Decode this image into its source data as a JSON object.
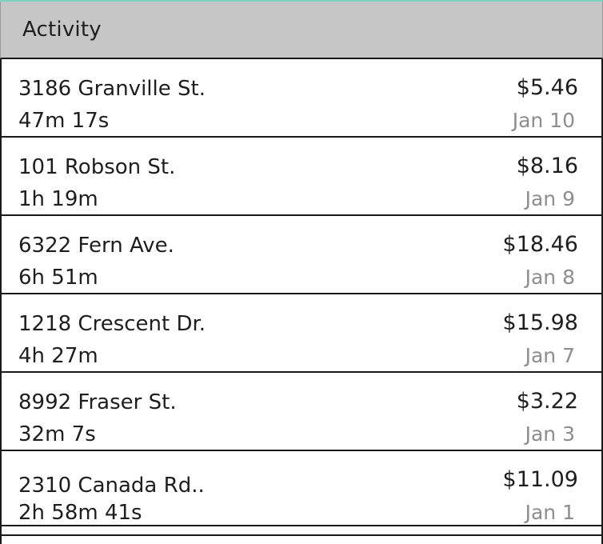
{
  "header": {
    "title": "Activity"
  },
  "activity": {
    "items": [
      {
        "address": "3186 Granville St.",
        "duration": "47m 17s",
        "price": "$5.46",
        "date": "Jan 10"
      },
      {
        "address": "101 Robson St.",
        "duration": "1h 19m",
        "price": "$8.16",
        "date": "Jan 9"
      },
      {
        "address": "6322 Fern Ave.",
        "duration": "6h 51m",
        "price": "$18.46",
        "date": "Jan 8"
      },
      {
        "address": "1218 Crescent Dr.",
        "duration": "4h 27m",
        "price": "$15.98",
        "date": "Jan 7"
      },
      {
        "address": "8992 Fraser St.",
        "duration": "32m 7s",
        "price": "$3.22",
        "date": "Jan 3"
      },
      {
        "address": "2310 Canada Rd..",
        "duration": "2h 58m 41s",
        "price": "$11.09",
        "date": "Jan 1"
      }
    ]
  },
  "colors": {
    "accent_top": "#7fd3bd",
    "header_bg": "#c6c6c6",
    "text": "#1e1e1e",
    "date_text": "#8d8d8d"
  }
}
